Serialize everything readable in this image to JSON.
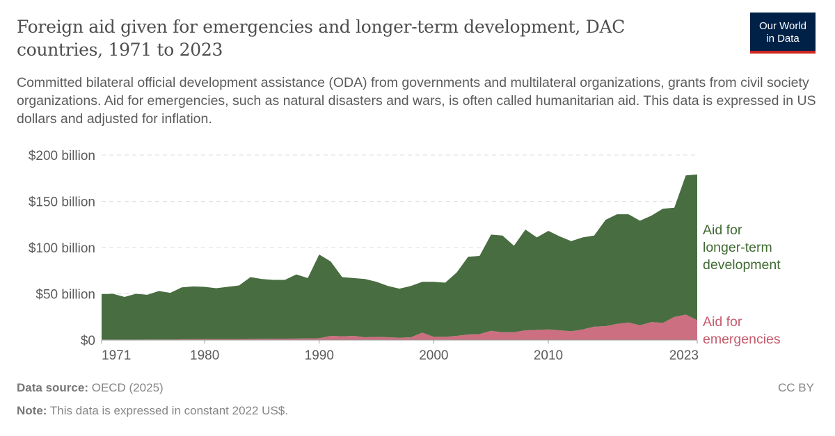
{
  "header": {
    "title": "Foreign aid given for emergencies and longer-term development, DAC countries, 1971 to 2023",
    "subtitle": "Committed bilateral official development assistance (ODA) from governments and multilateral organizations, grants from civil society organizations. Aid for emergencies, such as natural disasters and wars, is often called humanitarian aid. This data is expressed in US dollars and adjusted for inflation.",
    "logo_line1": "Our World",
    "logo_line2": "in Data"
  },
  "footer": {
    "source_label": "Data source:",
    "source": "OECD (2025)",
    "note_label": "Note:",
    "note": "This data is expressed in constant 2022 US$.",
    "license": "CC BY"
  },
  "chart_data": {
    "type": "area",
    "stacked": true,
    "title": "Foreign aid given for emergencies and longer-term development, DAC countries, 1971 to 2023",
    "xlabel": "",
    "ylabel": "",
    "ylim": [
      0,
      200
    ],
    "xlim": [
      1971,
      2023
    ],
    "grid": "horizontal dashed",
    "legend": "inline labels right",
    "y_ticks": [
      {
        "v": 0,
        "label": "$0"
      },
      {
        "v": 50,
        "label": "$50 billion"
      },
      {
        "v": 100,
        "label": "$100 billion"
      },
      {
        "v": 150,
        "label": "$150 billion"
      },
      {
        "v": 200,
        "label": "$200 billion"
      }
    ],
    "x_ticks": [
      {
        "v": 1971,
        "label": "1971"
      },
      {
        "v": 1980,
        "label": "1980"
      },
      {
        "v": 1990,
        "label": "1990"
      },
      {
        "v": 2000,
        "label": "2000"
      },
      {
        "v": 2010,
        "label": "2010"
      },
      {
        "v": 2023,
        "label": "2023"
      }
    ],
    "x": [
      1971,
      1972,
      1973,
      1974,
      1975,
      1976,
      1977,
      1978,
      1979,
      1980,
      1981,
      1982,
      1983,
      1984,
      1985,
      1986,
      1987,
      1988,
      1989,
      1990,
      1991,
      1992,
      1993,
      1994,
      1995,
      1996,
      1997,
      1998,
      1999,
      2000,
      2001,
      2002,
      2003,
      2004,
      2005,
      2006,
      2007,
      2008,
      2009,
      2010,
      2011,
      2012,
      2013,
      2014,
      2015,
      2016,
      2017,
      2018,
      2019,
      2020,
      2021,
      2022,
      2023
    ],
    "units": "billion US$ (constant 2022)",
    "series": [
      {
        "name": "Aid for emergencies",
        "color": "#cc6f80",
        "values": [
          0.5,
          0.5,
          0.5,
          0.5,
          0.6,
          0.6,
          0.7,
          0.8,
          0.9,
          1,
          1,
          1,
          1,
          1.2,
          1.3,
          1.4,
          1.5,
          1.6,
          1.8,
          2,
          4.5,
          4,
          4.5,
          3,
          3.5,
          3,
          2.5,
          3,
          8,
          3.5,
          3.5,
          4.5,
          6,
          6.5,
          10,
          8.5,
          8.5,
          10.5,
          11,
          11.5,
          10.5,
          9.5,
          11.5,
          14.5,
          15,
          17.5,
          19,
          16,
          19.5,
          18.5,
          25,
          27.5,
          21.5
        ]
      },
      {
        "name": "Aid for longer-term development",
        "color": "#486d40",
        "values": [
          49.1,
          49.5,
          46.1,
          49.5,
          48.4,
          52.4,
          50.3,
          56.2,
          57.1,
          56.5,
          55,
          56.5,
          58,
          66.8,
          64.7,
          63.6,
          63.5,
          69.4,
          65.2,
          90.5,
          80.5,
          64,
          62.5,
          63,
          59.5,
          55.5,
          53,
          55.5,
          55,
          59.5,
          58.5,
          68.5,
          84,
          84.5,
          104,
          104.5,
          93.5,
          109,
          100,
          106.5,
          101.5,
          97.5,
          99.5,
          98.5,
          115,
          118.5,
          117,
          113,
          115,
          123.5,
          118,
          150.5,
          157.5
        ]
      }
    ],
    "series_labels": [
      {
        "lines": [
          "Aid for",
          "longer-term",
          "development"
        ],
        "color": "#3f6a32"
      },
      {
        "lines": [
          "Aid for",
          "emergencies"
        ],
        "color": "#c65a6c"
      }
    ]
  }
}
